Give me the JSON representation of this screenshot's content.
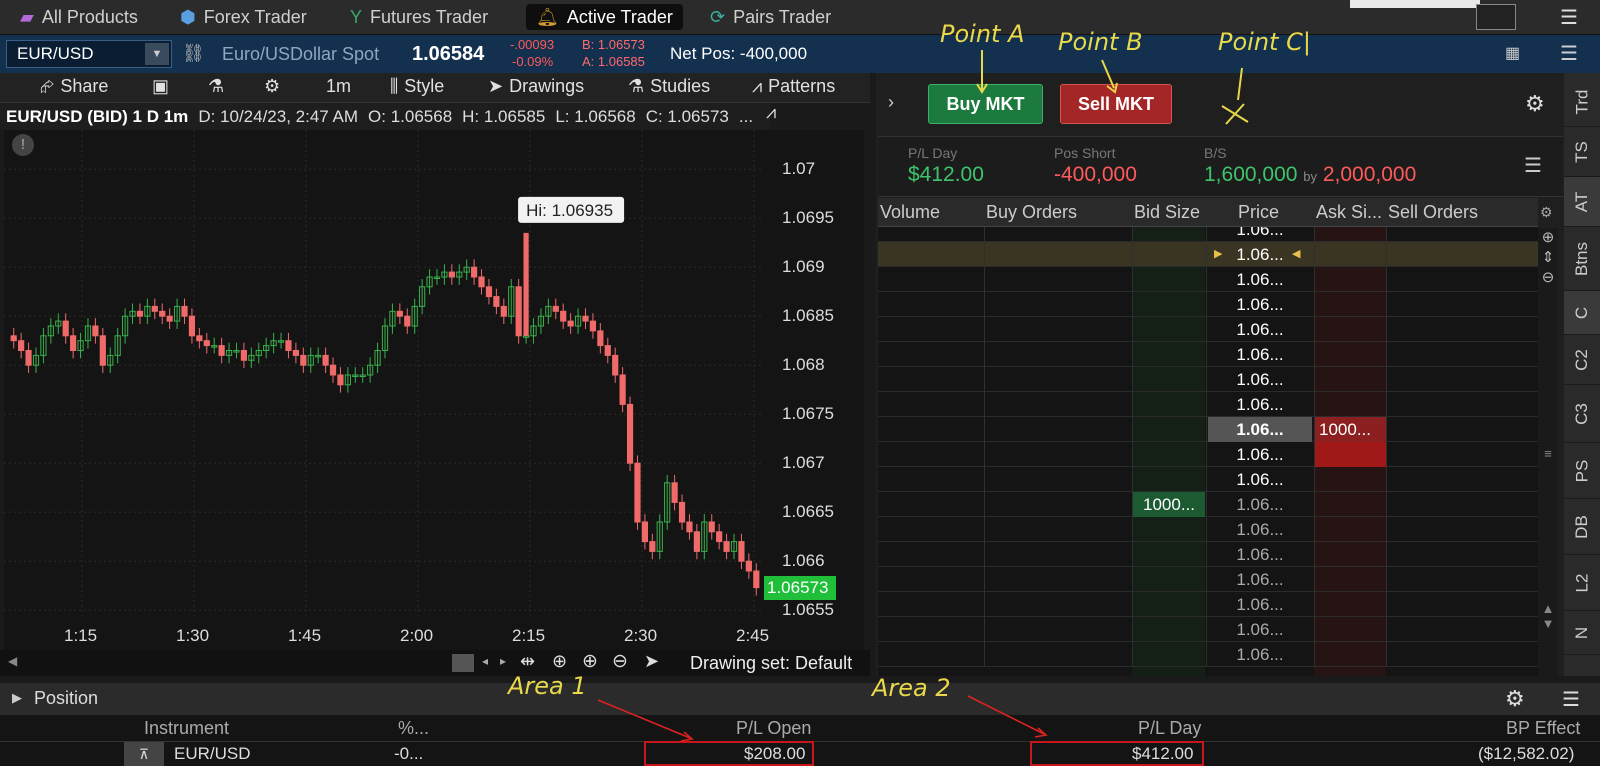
{
  "tabs": [
    {
      "label": "All Products",
      "icon": "products-icon",
      "color": "#b36ad9"
    },
    {
      "label": "Forex Trader",
      "icon": "forex-icon",
      "color": "#5aa0e0"
    },
    {
      "label": "Futures Trader",
      "icon": "futures-icon",
      "color": "#3aa86a"
    },
    {
      "label": "Active Trader",
      "icon": "bell-icon",
      "color": "#d39b2d",
      "active": true
    },
    {
      "label": "Pairs Trader",
      "icon": "pairs-icon",
      "color": "#3ab0a0"
    }
  ],
  "symbol": {
    "value": "EUR/USD",
    "description": "Euro/USDollar Spot",
    "last": "1.06584",
    "change": "-.00093",
    "change_pct": "-0.09%",
    "bid": "B: 1.06573",
    "ask": "A: 1.06585",
    "net_pos": "Net Pos: -400,000"
  },
  "chart_toolbar": {
    "share": "Share",
    "timeframe": "1m",
    "style": "Style",
    "drawings": "Drawings",
    "studies": "Studies",
    "patterns": "Patterns"
  },
  "chart_header": {
    "title": "EUR/USD (BID) 1 D 1m",
    "date": "D: 10/24/23, 2:47 AM",
    "open": "O: 1.06568",
    "high": "H: 1.06585",
    "low": "L: 1.06568",
    "close": "C: 1.06573",
    "more": "..."
  },
  "chart_data": {
    "type": "candlestick",
    "title": "EUR/USD (BID) 1 D 1m",
    "x_ticks": [
      "1:15",
      "1:30",
      "1:45",
      "2:00",
      "2:15",
      "2:30",
      "2:45"
    ],
    "y_ticks": [
      "1.07",
      "1.0695",
      "1.069",
      "1.0685",
      "1.068",
      "1.0675",
      "1.067",
      "1.0665",
      "1.066",
      "1.0655"
    ],
    "ylim": [
      1.0654,
      1.0704
    ],
    "high_label": "Hi: 1.06935",
    "last_price": "1.06573",
    "close_series": [
      1.06825,
      1.06815,
      1.068,
      1.0681,
      1.0683,
      1.0684,
      1.06845,
      1.0683,
      1.06815,
      1.06825,
      1.0684,
      1.0683,
      1.068,
      1.0681,
      1.0683,
      1.0685,
      1.06855,
      1.0685,
      1.0686,
      1.06855,
      1.0685,
      1.06845,
      1.0686,
      1.0685,
      1.0683,
      1.06825,
      1.0682,
      1.0682,
      1.0681,
      1.06815,
      1.06815,
      1.06805,
      1.0681,
      1.06815,
      1.0682,
      1.06825,
      1.06825,
      1.06815,
      1.0681,
      1.068,
      1.0681,
      1.0681,
      1.068,
      1.0679,
      1.0678,
      1.0679,
      1.0679,
      1.0679,
      1.068,
      1.06815,
      1.0684,
      1.06855,
      1.0685,
      1.0684,
      1.0686,
      1.0688,
      1.0689,
      1.0689,
      1.06895,
      1.0689,
      1.06895,
      1.069,
      1.0689,
      1.0688,
      1.0687,
      1.0686,
      1.0685,
      1.0688,
      1.0683,
      1.0683,
      1.0684,
      1.0685,
      1.0686,
      1.06855,
      1.06845,
      1.0684,
      1.0685,
      1.06845,
      1.06835,
      1.0682,
      1.0681,
      1.0679,
      1.0676,
      1.067,
      1.0664,
      1.0662,
      1.0661,
      1.0664,
      1.0668,
      1.0666,
      1.0664,
      1.0663,
      1.0661,
      1.0664,
      1.0663,
      1.0662,
      1.0661,
      1.0662,
      1.066,
      1.0659,
      1.06573
    ]
  },
  "chart_bottom": {
    "drawing_set": "Drawing set: Default"
  },
  "order_buttons": {
    "buy": "Buy MKT",
    "sell": "Sell MKT"
  },
  "annotations": {
    "point_a": "Point A",
    "point_b": "Point B",
    "point_c": "Point C|",
    "area_1": "Area 1",
    "area_2": "Area 2"
  },
  "stats": {
    "pl_day_label": "P/L Day",
    "pl_day": "$412.00",
    "pos_label": "Pos Short",
    "pos": "-400,000",
    "bs_label": "B/S",
    "bs_buy": "1,600,000",
    "bs_by": "by",
    "bs_sell": "2,000,000"
  },
  "ladder": {
    "headers": [
      "Volume",
      "Buy Orders",
      "Bid Size",
      "Price",
      "Ask Si...",
      "Sell Orders"
    ],
    "rows": [
      {
        "price": "1.06...",
        "bid": "",
        "ask": "",
        "highlight": false
      },
      {
        "price": "1.06...",
        "bid": "",
        "ask": "",
        "highlight": true
      },
      {
        "price": "1.06...",
        "bid": "",
        "ask": ""
      },
      {
        "price": "1.06...",
        "bid": "",
        "ask": ""
      },
      {
        "price": "1.06...",
        "bid": "",
        "ask": ""
      },
      {
        "price": "1.06...",
        "bid": "",
        "ask": ""
      },
      {
        "price": "1.06...",
        "bid": "",
        "ask": ""
      },
      {
        "price": "1.06...",
        "bid": "",
        "ask": ""
      },
      {
        "price": "1.06...",
        "bid": "",
        "ask": "1000...",
        "last": true
      },
      {
        "price": "1.06...",
        "bid": "",
        "ask": "",
        "askfill": true
      },
      {
        "price": "1.06...",
        "bid": "",
        "ask": ""
      },
      {
        "price": "1.06...",
        "bid": "1000...",
        "ask": "",
        "dim": true
      },
      {
        "price": "1.06...",
        "bid": "",
        "ask": "",
        "dim": true
      },
      {
        "price": "1.06...",
        "bid": "",
        "ask": "",
        "dim": true
      },
      {
        "price": "1.06...",
        "bid": "",
        "ask": "",
        "dim": true
      },
      {
        "price": "1.06...",
        "bid": "",
        "ask": "",
        "dim": true
      },
      {
        "price": "1.06...",
        "bid": "",
        "ask": "",
        "dim": true
      },
      {
        "price": "1.06...",
        "bid": "",
        "ask": "",
        "dim": true
      }
    ]
  },
  "side_tabs": [
    "Trd",
    "TS",
    "AT",
    "Btns",
    "C",
    "C2",
    "C3",
    "PS",
    "DB",
    "L2",
    "N"
  ],
  "position": {
    "title": "Position",
    "headers": {
      "instrument": "Instrument",
      "pct": "%...",
      "pl_open": "P/L Open",
      "pl_day": "P/L Day",
      "bp": "BP Effect"
    },
    "row": {
      "instrument": "EUR/USD",
      "pct": "-0...",
      "pl_open": "$208.00",
      "pl_day": "$412.00",
      "bp": "($12,582.02)"
    }
  }
}
